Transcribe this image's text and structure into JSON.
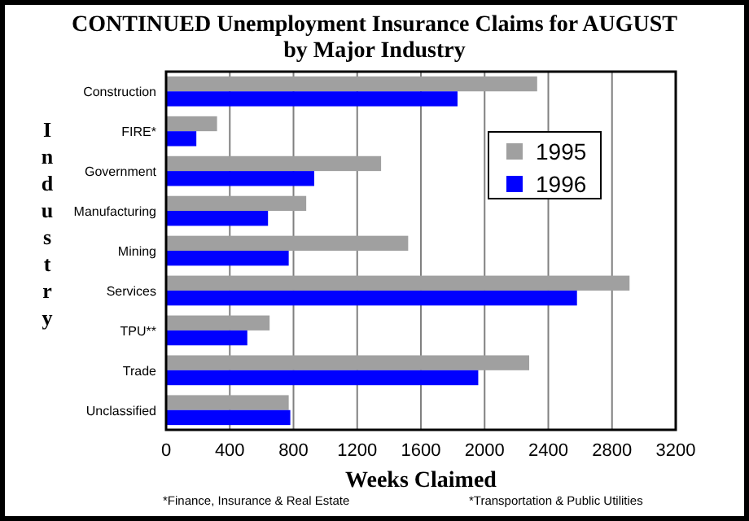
{
  "chart_data": {
    "type": "bar",
    "orientation": "horizontal",
    "title": "CONTINUED Unemployment Insurance Claims for AUGUST",
    "subtitle": "by Major Industry",
    "xlabel": "Weeks Claimed",
    "ylabel": "Industry",
    "categories": [
      "Construction",
      "FIRE*",
      "Government",
      "Manufacturing",
      "Mining",
      "Services",
      "TPU**",
      "Trade",
      "Unclassified"
    ],
    "series": [
      {
        "name": "1995",
        "color": "#a0a0a0",
        "values": [
          2330,
          320,
          1350,
          880,
          1520,
          2910,
          650,
          2280,
          770
        ]
      },
      {
        "name": "1996",
        "color": "#0000ff",
        "values": [
          1830,
          190,
          930,
          640,
          770,
          2580,
          510,
          1960,
          780
        ]
      }
    ],
    "xlim": [
      0,
      3200
    ],
    "xticks": [
      0,
      400,
      800,
      1200,
      1600,
      2000,
      2400,
      2800,
      3200
    ],
    "grid": "x",
    "legend": "right",
    "annotations": [
      "*Finance, Insurance & Real Estate",
      "*Transportation & Public Utilities"
    ]
  }
}
